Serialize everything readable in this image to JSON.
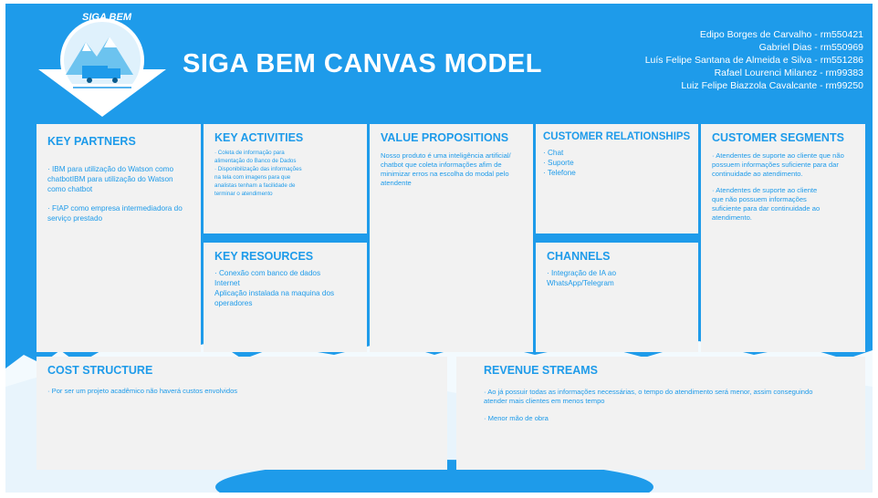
{
  "header": {
    "title": "SIGA BEM CANVAS MODEL",
    "logo_text": "SIGA BEM",
    "team": [
      "Edipo Borges de Carvalho - rm550421",
      "Gabriel Dias - rm550969",
      "Luís Felipe Santana de Almeida e Silva - rm551286",
      "Rafael Lourenci Milanez - rm99383",
      "Luiz Felipe Biazzola Cavalcante - rm99250"
    ]
  },
  "blocks": {
    "key_partners": {
      "title": "KEY PARTNERS",
      "items": [
        "· IBM para utilização do Watson como chatbotIBM para utilização do Watson como chatbot",
        "· FIAP como empresa intermediadora do serviço prestado"
      ]
    },
    "key_activities": {
      "title": "KEY ACTIVITIES",
      "items": [
        "· Coleta de informação para alimentação do Banco de Dados",
        "· Disponibilização das informações na tela com imagens para que analistas tenham a facilidade de terminar o atendimento"
      ]
    },
    "key_resources": {
      "title": "KEY RESOURCES",
      "items": [
        "· Conexão com banco de dados Internet",
        "Aplicação instalada na maquina dos operadores"
      ]
    },
    "value_propositions": {
      "title": "VALUE PROPOSITIONS",
      "items": [
        "Nosso produto é uma inteligência artificial/ chatbot que coleta informações afim de minimizar erros na escolha do modal pelo atendente"
      ]
    },
    "customer_relationships": {
      "title": "CUSTOMER RELATIONSHIPS",
      "items": [
        "· Chat",
        "· Suporte",
        "· Telefone"
      ]
    },
    "channels": {
      "title": "CHANNELS",
      "items": [
        "· Integração de IA ao WhatsApp/Telegram"
      ]
    },
    "customer_segments": {
      "title": "CUSTOMER SEGMENTS",
      "items": [
        "· Atendentes de suporte ao cliente que não possuem informações suficiente para dar continuidade ao atendimento.",
        "· Atendentes de suporte ao cliente que não possuem informações suficiente para dar continuidade ao atendimento."
      ]
    },
    "cost_structure": {
      "title": "COST STRUCTURE",
      "items": [
        "· Por ser um projeto acadêmico não haverá custos envolvidos"
      ]
    },
    "revenue_streams": {
      "title": "REVENUE STREAMS",
      "items": [
        "· Ao já possuir todas as informações necessárias, o tempo do atendimento será menor, assim conseguindo atender mais clientes em menos tempo",
        "· Menor mão de obra"
      ]
    }
  },
  "colors": {
    "brand_blue": "#1e9bea",
    "card_bg": "#f2f2f2",
    "text_white": "#ffffff"
  }
}
